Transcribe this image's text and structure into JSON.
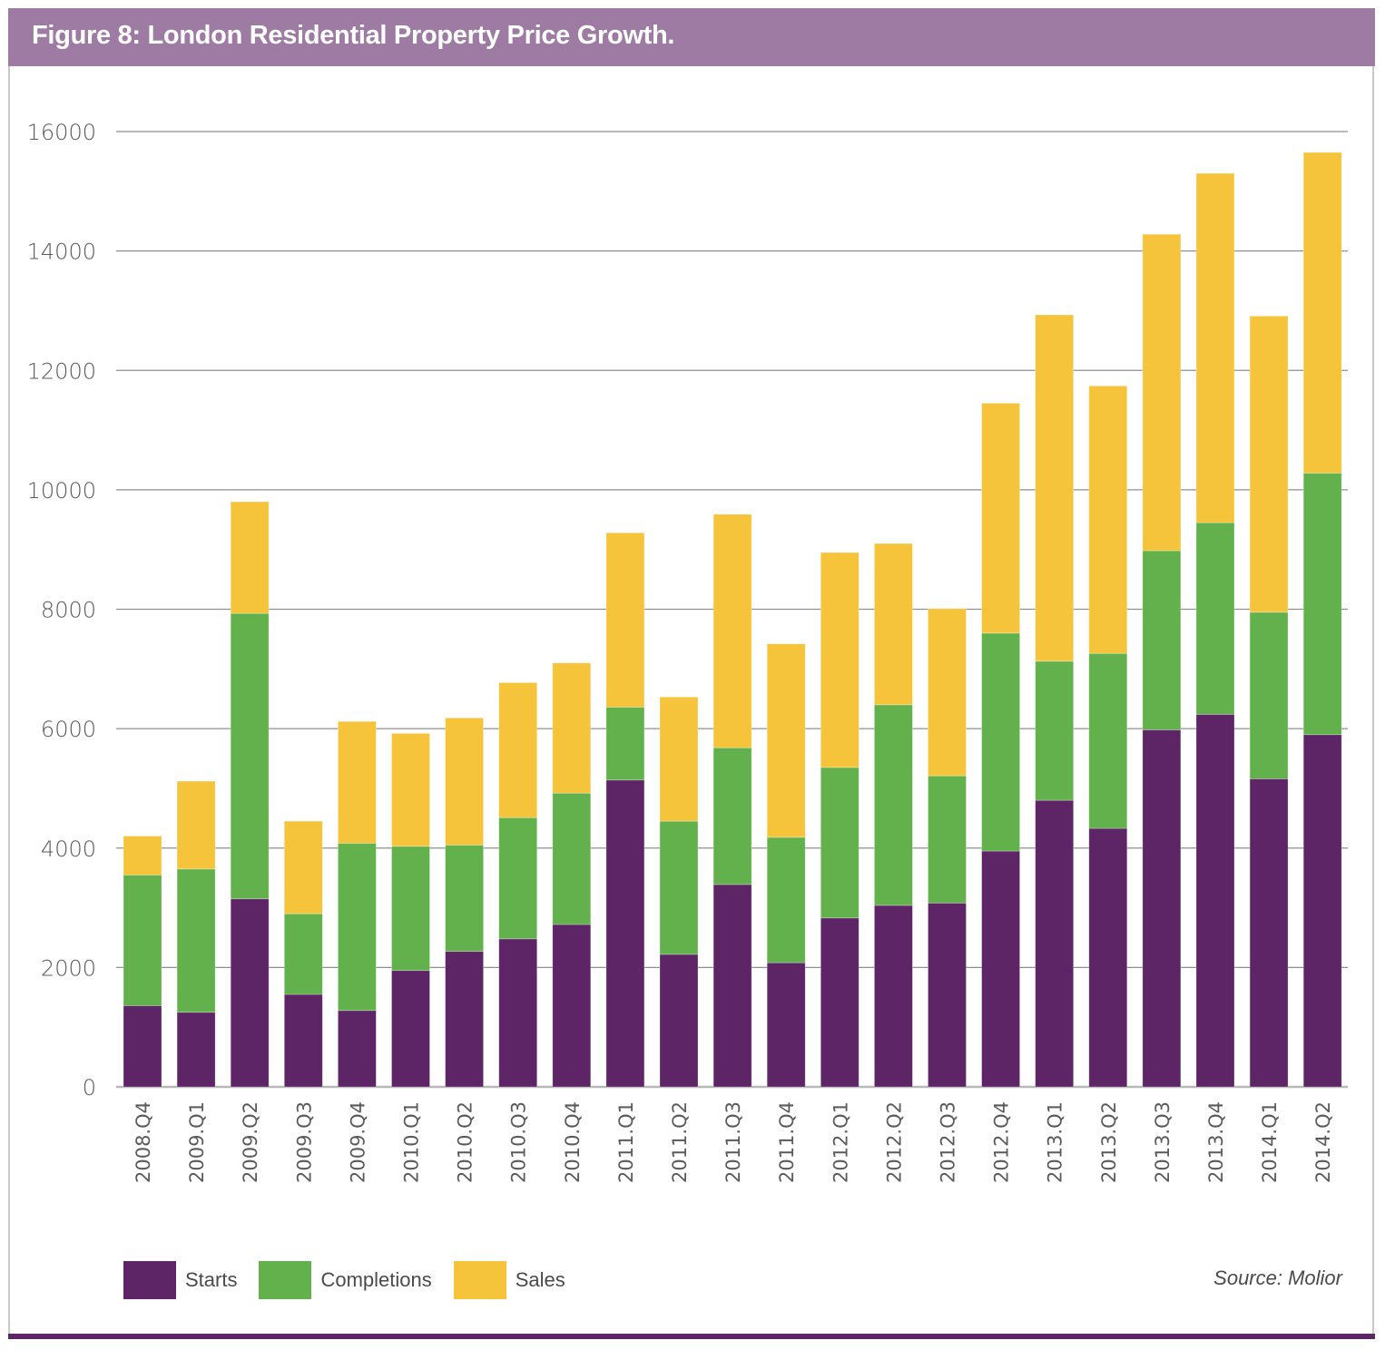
{
  "figure": {
    "title": "Figure 8: London Residential Property Price Growth.",
    "source": "Source: Molior",
    "header_color": "#9d7ba3",
    "rule_color": "#5d2466"
  },
  "chart_data": {
    "type": "bar",
    "stacked": true,
    "title": "Figure 8: London Residential Property Price Growth.",
    "xlabel": "",
    "ylabel": "",
    "ylim": [
      0,
      16000
    ],
    "yticks": [
      0,
      2000,
      4000,
      6000,
      8000,
      10000,
      12000,
      14000,
      16000
    ],
    "grid": true,
    "legend_position": "bottom-left",
    "categories": [
      "2008.Q4",
      "2009.Q1",
      "2009.Q2",
      "2009.Q3",
      "2009.Q4",
      "2010.Q1",
      "2010.Q2",
      "2010.Q3",
      "2010.Q4",
      "2011.Q1",
      "2011.Q2",
      "2011.Q3",
      "2011.Q4",
      "2012.Q1",
      "2012.Q2",
      "2012.Q3",
      "2012.Q4",
      "2013.Q1",
      "2013.Q2",
      "2013.Q3",
      "2013.Q4",
      "2014.Q1",
      "2014.Q2"
    ],
    "series": [
      {
        "name": "Starts",
        "color": "#5d2466",
        "values": [
          1360,
          1250,
          3150,
          1550,
          1280,
          1950,
          2270,
          2480,
          2720,
          5140,
          2220,
          3390,
          2080,
          2830,
          3040,
          3080,
          3950,
          4800,
          4330,
          5980,
          6240,
          5160,
          5900
        ]
      },
      {
        "name": "Completions",
        "color": "#63b14c",
        "values": [
          2190,
          2400,
          4780,
          1350,
          2800,
          2080,
          1780,
          2030,
          2200,
          1220,
          2230,
          2290,
          2100,
          2520,
          3360,
          2130,
          3650,
          2330,
          2930,
          3000,
          3210,
          2790,
          4380
        ]
      },
      {
        "name": "Sales",
        "color": "#f5c43a",
        "values": [
          650,
          1470,
          1870,
          1550,
          2040,
          1890,
          2130,
          2260,
          2180,
          2920,
          2080,
          3910,
          3240,
          3600,
          2700,
          2800,
          3850,
          5800,
          4480,
          5300,
          5850,
          4960,
          5370
        ]
      }
    ]
  }
}
